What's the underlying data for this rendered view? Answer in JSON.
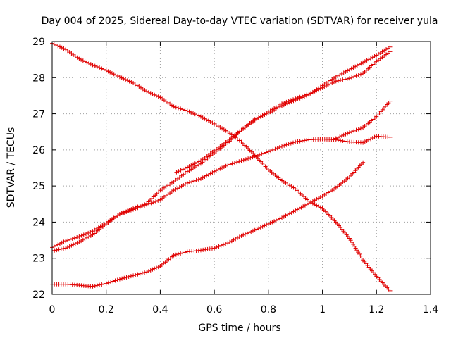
{
  "chart_data": {
    "type": "scatter",
    "title": "Day 004 of 2025, Sidereal Day-to-day VTEC variation (SDTVAR) for receiver yula",
    "xlabel": "GPS time / hours",
    "ylabel": "SDTVAR / TECUs",
    "xlim": [
      0,
      1.4
    ],
    "ylim": [
      22,
      29
    ],
    "xticks": [
      0,
      0.2,
      0.4,
      0.6,
      0.8,
      1,
      1.2,
      1.4
    ],
    "xtick_labels": [
      "0",
      "0.2",
      "0.4",
      "0.6",
      "0.8",
      "1",
      "1.2",
      "1.4"
    ],
    "yticks": [
      22,
      23,
      24,
      25,
      26,
      27,
      28,
      29
    ],
    "ytick_labels": [
      "22",
      "23",
      "24",
      "25",
      "26",
      "27",
      "28",
      "29"
    ],
    "grid": true,
    "marker": "+",
    "color": "#e00000",
    "series": [
      {
        "name": "series-1",
        "points": [
          [
            0.0,
            28.95
          ],
          [
            0.05,
            28.78
          ],
          [
            0.1,
            28.52
          ],
          [
            0.15,
            28.35
          ],
          [
            0.2,
            28.2
          ],
          [
            0.25,
            28.02
          ],
          [
            0.3,
            27.85
          ],
          [
            0.35,
            27.62
          ],
          [
            0.4,
            27.45
          ],
          [
            0.45,
            27.2
          ],
          [
            0.5,
            27.08
          ],
          [
            0.55,
            26.92
          ],
          [
            0.6,
            26.72
          ],
          [
            0.65,
            26.5
          ],
          [
            0.7,
            26.22
          ],
          [
            0.75,
            25.85
          ],
          [
            0.8,
            25.45
          ],
          [
            0.85,
            25.15
          ],
          [
            0.9,
            24.92
          ],
          [
            0.95,
            24.58
          ],
          [
            1.0,
            24.38
          ],
          [
            1.05,
            24.0
          ],
          [
            1.1,
            23.55
          ],
          [
            1.15,
            22.95
          ],
          [
            1.2,
            22.5
          ],
          [
            1.25,
            22.1
          ]
        ]
      },
      {
        "name": "series-2",
        "points": [
          [
            0.0,
            22.28
          ],
          [
            0.05,
            22.28
          ],
          [
            0.1,
            22.25
          ],
          [
            0.15,
            22.22
          ],
          [
            0.2,
            22.3
          ],
          [
            0.25,
            22.42
          ],
          [
            0.3,
            22.52
          ],
          [
            0.35,
            22.62
          ],
          [
            0.4,
            22.78
          ],
          [
            0.45,
            23.08
          ],
          [
            0.5,
            23.18
          ],
          [
            0.55,
            23.22
          ],
          [
            0.6,
            23.28
          ],
          [
            0.65,
            23.42
          ],
          [
            0.7,
            23.62
          ],
          [
            0.75,
            23.78
          ],
          [
            0.8,
            23.95
          ],
          [
            0.85,
            24.12
          ],
          [
            0.9,
            24.32
          ],
          [
            0.95,
            24.52
          ],
          [
            1.0,
            24.72
          ],
          [
            1.05,
            24.95
          ],
          [
            1.1,
            25.25
          ],
          [
            1.15,
            25.65
          ]
        ]
      },
      {
        "name": "series-3",
        "points": [
          [
            0.0,
            23.3
          ],
          [
            0.05,
            23.48
          ],
          [
            0.1,
            23.6
          ],
          [
            0.15,
            23.75
          ],
          [
            0.2,
            23.98
          ],
          [
            0.25,
            24.22
          ],
          [
            0.3,
            24.38
          ],
          [
            0.35,
            24.52
          ],
          [
            0.4,
            24.88
          ],
          [
            0.45,
            25.12
          ],
          [
            0.5,
            25.4
          ],
          [
            0.55,
            25.62
          ],
          [
            0.6,
            25.92
          ],
          [
            0.65,
            26.2
          ],
          [
            0.7,
            26.55
          ],
          [
            0.75,
            26.85
          ],
          [
            0.8,
            27.02
          ],
          [
            0.85,
            27.22
          ],
          [
            0.9,
            27.38
          ],
          [
            0.95,
            27.52
          ],
          [
            1.0,
            27.78
          ],
          [
            1.05,
            28.02
          ],
          [
            1.1,
            28.22
          ],
          [
            1.15,
            28.42
          ],
          [
            1.2,
            28.62
          ],
          [
            1.25,
            28.85
          ]
        ]
      },
      {
        "name": "series-4",
        "points": [
          [
            0.0,
            23.2
          ],
          [
            0.05,
            23.28
          ],
          [
            0.1,
            23.45
          ],
          [
            0.15,
            23.65
          ],
          [
            0.2,
            23.95
          ],
          [
            0.25,
            24.22
          ],
          [
            0.3,
            24.35
          ],
          [
            0.35,
            24.48
          ],
          [
            0.4,
            24.62
          ],
          [
            0.45,
            24.88
          ],
          [
            0.5,
            25.08
          ],
          [
            0.55,
            25.2
          ],
          [
            0.6,
            25.4
          ],
          [
            0.65,
            25.58
          ],
          [
            0.7,
            25.7
          ],
          [
            0.75,
            25.82
          ],
          [
            0.8,
            25.95
          ],
          [
            0.85,
            26.1
          ],
          [
            0.9,
            26.22
          ],
          [
            0.95,
            26.28
          ],
          [
            1.0,
            26.3
          ],
          [
            1.05,
            26.28
          ],
          [
            1.1,
            26.22
          ],
          [
            1.15,
            26.2
          ],
          [
            1.2,
            26.38
          ],
          [
            1.25,
            26.35
          ]
        ]
      },
      {
        "name": "series-5",
        "points": [
          [
            0.46,
            25.38
          ],
          [
            0.5,
            25.52
          ],
          [
            0.55,
            25.7
          ],
          [
            0.6,
            25.98
          ],
          [
            0.65,
            26.25
          ],
          [
            0.7,
            26.55
          ],
          [
            0.75,
            26.82
          ],
          [
            0.8,
            27.05
          ],
          [
            0.85,
            27.28
          ],
          [
            0.9,
            27.42
          ],
          [
            0.95,
            27.55
          ],
          [
            1.0,
            27.72
          ],
          [
            1.05,
            27.9
          ],
          [
            1.1,
            27.98
          ],
          [
            1.15,
            28.12
          ],
          [
            1.2,
            28.45
          ],
          [
            1.25,
            28.72
          ]
        ]
      },
      {
        "name": "series-6",
        "points": [
          [
            1.05,
            26.32
          ],
          [
            1.1,
            26.48
          ],
          [
            1.15,
            26.62
          ],
          [
            1.2,
            26.92
          ],
          [
            1.25,
            27.35
          ]
        ]
      }
    ]
  }
}
